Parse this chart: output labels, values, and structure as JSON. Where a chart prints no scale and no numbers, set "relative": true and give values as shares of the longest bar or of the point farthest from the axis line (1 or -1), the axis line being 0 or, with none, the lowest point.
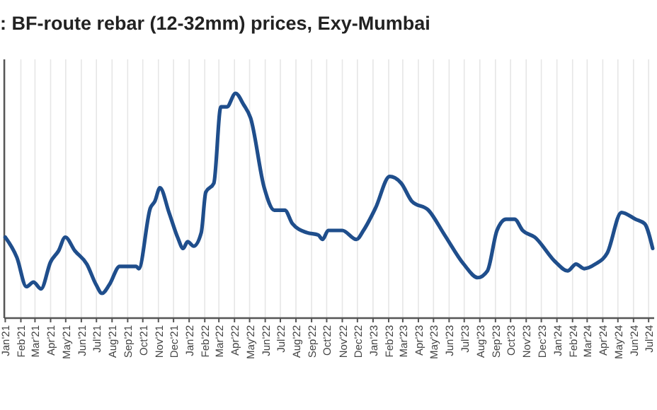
{
  "chart_data": {
    "type": "line",
    "title": ": BF-route rebar (12-32mm) prices, Exy-Mumbai",
    "relative": true,
    "grid": "x",
    "xlim": [
      "2020-12-30",
      "2024-07-12"
    ],
    "xticks": [
      {
        "value": "2021-01-01",
        "label": "Jan'21"
      },
      {
        "value": "2021-02-01",
        "label": "Feb'21"
      },
      {
        "value": "2021-03-01",
        "label": "Mar'21"
      },
      {
        "value": "2021-04-01",
        "label": "Apr'21"
      },
      {
        "value": "2021-05-01",
        "label": "May'21"
      },
      {
        "value": "2021-06-01",
        "label": "Jun'21"
      },
      {
        "value": "2021-07-01",
        "label": "Jul'21"
      },
      {
        "value": "2021-08-01",
        "label": "Aug'21"
      },
      {
        "value": "2021-09-01",
        "label": "Sep'21"
      },
      {
        "value": "2021-10-01",
        "label": "Oct'21"
      },
      {
        "value": "2021-11-01",
        "label": "Nov'21"
      },
      {
        "value": "2021-12-01",
        "label": "Dec'21"
      },
      {
        "value": "2022-01-01",
        "label": "Jan'22"
      },
      {
        "value": "2022-02-01",
        "label": "Feb'22"
      },
      {
        "value": "2022-03-01",
        "label": "Mar'22"
      },
      {
        "value": "2022-04-01",
        "label": "Apr'22"
      },
      {
        "value": "2022-05-01",
        "label": "May'22"
      },
      {
        "value": "2022-06-01",
        "label": "Jun'22"
      },
      {
        "value": "2022-07-01",
        "label": "Jul'22"
      },
      {
        "value": "2022-08-01",
        "label": "Aug'22"
      },
      {
        "value": "2022-09-01",
        "label": "Sep'22"
      },
      {
        "value": "2022-10-01",
        "label": "Oct'22"
      },
      {
        "value": "2022-11-01",
        "label": "Nov'22"
      },
      {
        "value": "2022-12-01",
        "label": "Dec'22"
      },
      {
        "value": "2023-01-01",
        "label": "Jan'23"
      },
      {
        "value": "2023-02-01",
        "label": "Feb'23"
      },
      {
        "value": "2023-03-01",
        "label": "Mar'23"
      },
      {
        "value": "2023-04-01",
        "label": "Apr'23"
      },
      {
        "value": "2023-05-01",
        "label": "May'23"
      },
      {
        "value": "2023-06-01",
        "label": "Jun'23"
      },
      {
        "value": "2023-07-01",
        "label": "Jul'23"
      },
      {
        "value": "2023-08-01",
        "label": "Aug'23"
      },
      {
        "value": "2023-09-01",
        "label": "Sep'23"
      },
      {
        "value": "2023-10-01",
        "label": "Oct'23"
      },
      {
        "value": "2023-11-01",
        "label": "Nov'23"
      },
      {
        "value": "2023-12-01",
        "label": "Dec'23"
      },
      {
        "value": "2024-01-01",
        "label": "Jan'24"
      },
      {
        "value": "2024-02-01",
        "label": "Feb'24"
      },
      {
        "value": "2024-03-01",
        "label": "Mar'24"
      },
      {
        "value": "2024-04-01",
        "label": "Apr'24"
      },
      {
        "value": "2024-05-01",
        "label": "May'24"
      },
      {
        "value": "2024-06-01",
        "label": "Jun'24"
      },
      {
        "value": "2024-07-01",
        "label": "Jul'24"
      }
    ],
    "x": [
      "2021-01-01",
      "2021-01-24",
      "2021-02-12",
      "2021-02-26",
      "2021-03-13",
      "2021-04-01",
      "2021-04-17",
      "2021-04-30",
      "2021-05-19",
      "2021-06-12",
      "2021-06-30",
      "2021-07-12",
      "2021-07-27",
      "2021-08-16",
      "2021-09-18",
      "2021-09-23",
      "2021-10-16",
      "2021-10-25",
      "2021-11-04",
      "2021-11-22",
      "2021-12-09",
      "2021-12-20",
      "2021-12-29",
      "2022-01-10",
      "2022-01-25",
      "2022-02-03",
      "2022-02-19",
      "2022-03-05",
      "2022-03-17",
      "2022-04-03",
      "2022-04-19",
      "2022-05-03",
      "2022-05-30",
      "2022-06-19",
      "2022-07-10",
      "2022-07-25",
      "2022-08-23",
      "2022-09-14",
      "2022-09-23",
      "2022-10-04",
      "2022-11-01",
      "2022-11-29",
      "2022-12-13",
      "2023-01-06",
      "2023-02-03",
      "2023-02-26",
      "2023-03-19",
      "2023-04-21",
      "2023-05-23",
      "2023-06-30",
      "2023-07-28",
      "2023-08-16",
      "2023-09-04",
      "2023-09-22",
      "2023-10-09",
      "2023-10-25",
      "2023-11-18",
      "2023-12-29",
      "2024-01-22",
      "2024-02-08",
      "2024-02-24",
      "2024-03-17",
      "2024-04-10",
      "2024-05-08",
      "2024-06-05",
      "2024-06-23",
      "2024-07-09"
    ],
    "series": [
      {
        "color": "#1f4e8c",
        "values": [
          0.36,
          0.27,
          0.14,
          0.16,
          0.13,
          0.25,
          0.3,
          0.36,
          0.3,
          0.24,
          0.15,
          0.11,
          0.15,
          0.23,
          0.23,
          0.22,
          0.49,
          0.52,
          0.58,
          0.47,
          0.36,
          0.31,
          0.34,
          0.32,
          0.38,
          0.56,
          0.6,
          0.94,
          0.94,
          1.0,
          0.95,
          0.89,
          0.58,
          0.48,
          0.48,
          0.42,
          0.38,
          0.37,
          0.35,
          0.39,
          0.39,
          0.35,
          0.39,
          0.49,
          0.63,
          0.6,
          0.52,
          0.48,
          0.37,
          0.24,
          0.18,
          0.21,
          0.39,
          0.44,
          0.44,
          0.39,
          0.36,
          0.25,
          0.21,
          0.24,
          0.22,
          0.24,
          0.29,
          0.47,
          0.44,
          0.42,
          0.31
        ]
      }
    ]
  }
}
